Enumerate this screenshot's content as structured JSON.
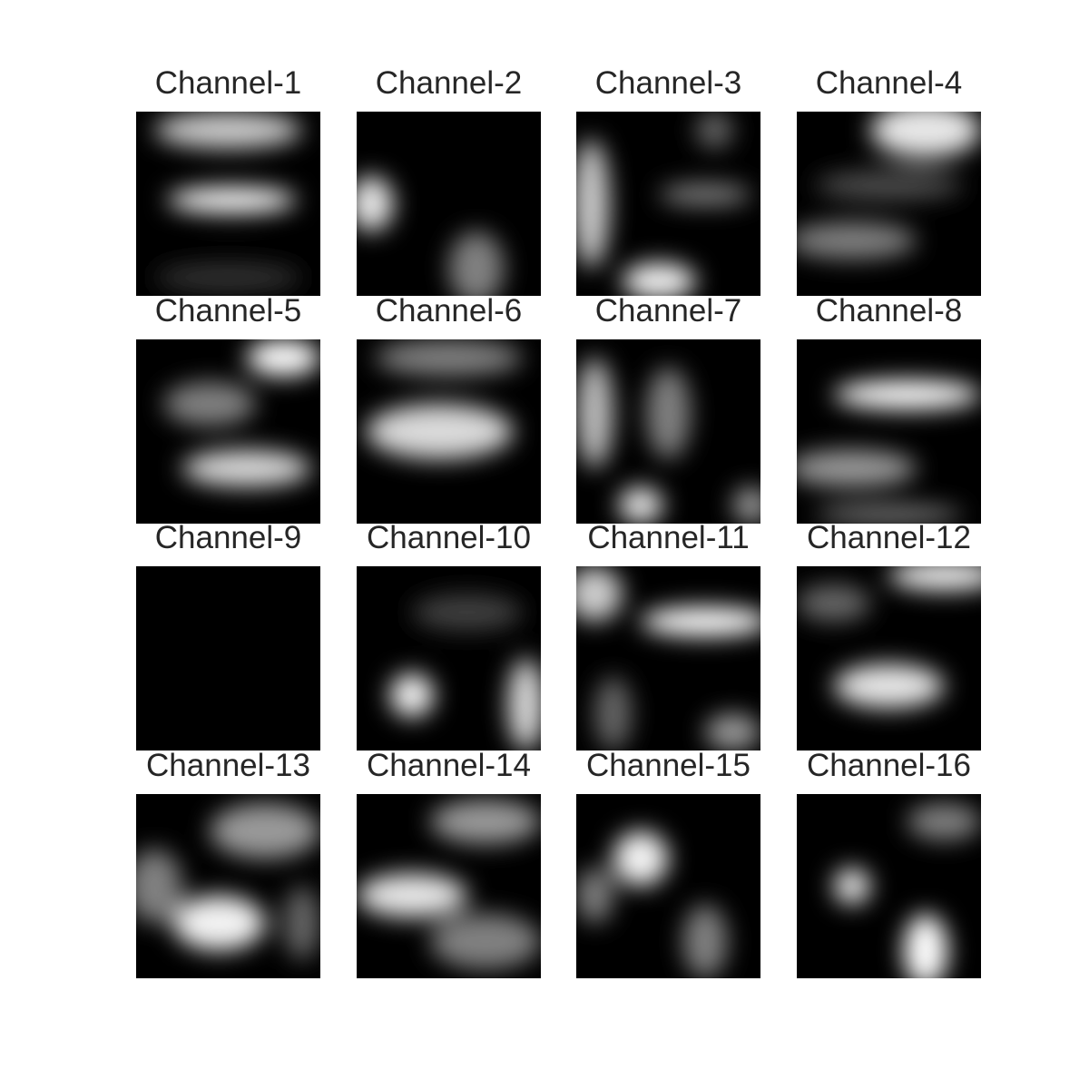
{
  "panels": [
    {
      "title": "Channel-1"
    },
    {
      "title": "Channel-2"
    },
    {
      "title": "Channel-3"
    },
    {
      "title": "Channel-4"
    },
    {
      "title": "Channel-5"
    },
    {
      "title": "Channel-6"
    },
    {
      "title": "Channel-7"
    },
    {
      "title": "Channel-8"
    },
    {
      "title": "Channel-9"
    },
    {
      "title": "Channel-10"
    },
    {
      "title": "Channel-11"
    },
    {
      "title": "Channel-12"
    },
    {
      "title": "Channel-13"
    },
    {
      "title": "Channel-14"
    },
    {
      "title": "Channel-15"
    },
    {
      "title": "Channel-16"
    }
  ]
}
